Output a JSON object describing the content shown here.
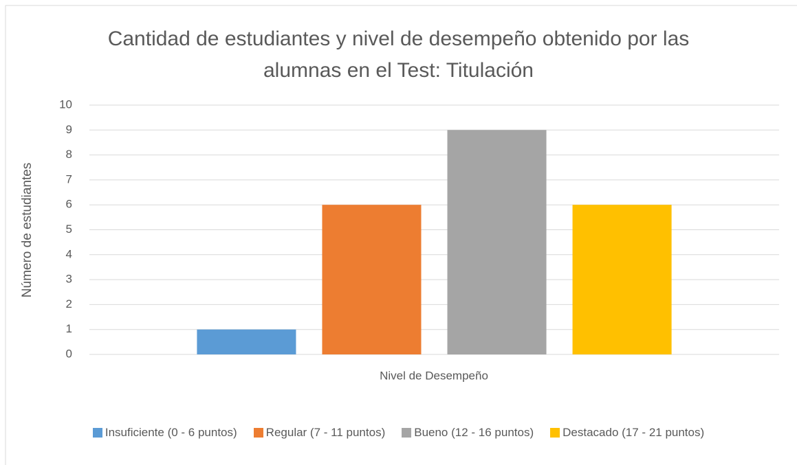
{
  "chart_data": {
    "type": "bar",
    "title": "Cantidad de estudiantes y nivel de desempeño obtenido por las alumnas en el Test: Titulación",
    "x_label": "Nivel de Desempeño",
    "y_label": "Número de estudiantes",
    "categories": [
      null
    ],
    "series": [
      {
        "name": "Insuficiente (0 - 6 puntos)",
        "color": "#5b9bd5",
        "values": [
          1
        ]
      },
      {
        "name": "Regular (7 - 11 puntos)",
        "color": "#ed7d31",
        "values": [
          6
        ]
      },
      {
        "name": "Bueno (12 - 16 puntos)",
        "color": "#a5a5a5",
        "values": [
          9
        ]
      },
      {
        "name": "Destacado (17 - 21 puntos)",
        "color": "#ffc000",
        "values": [
          6
        ]
      }
    ],
    "ylim": [
      0,
      10
    ],
    "yticks": [
      0,
      1,
      2,
      3,
      4,
      5,
      6,
      7,
      8,
      9,
      10
    ],
    "grid": true,
    "legend": "bottom"
  }
}
